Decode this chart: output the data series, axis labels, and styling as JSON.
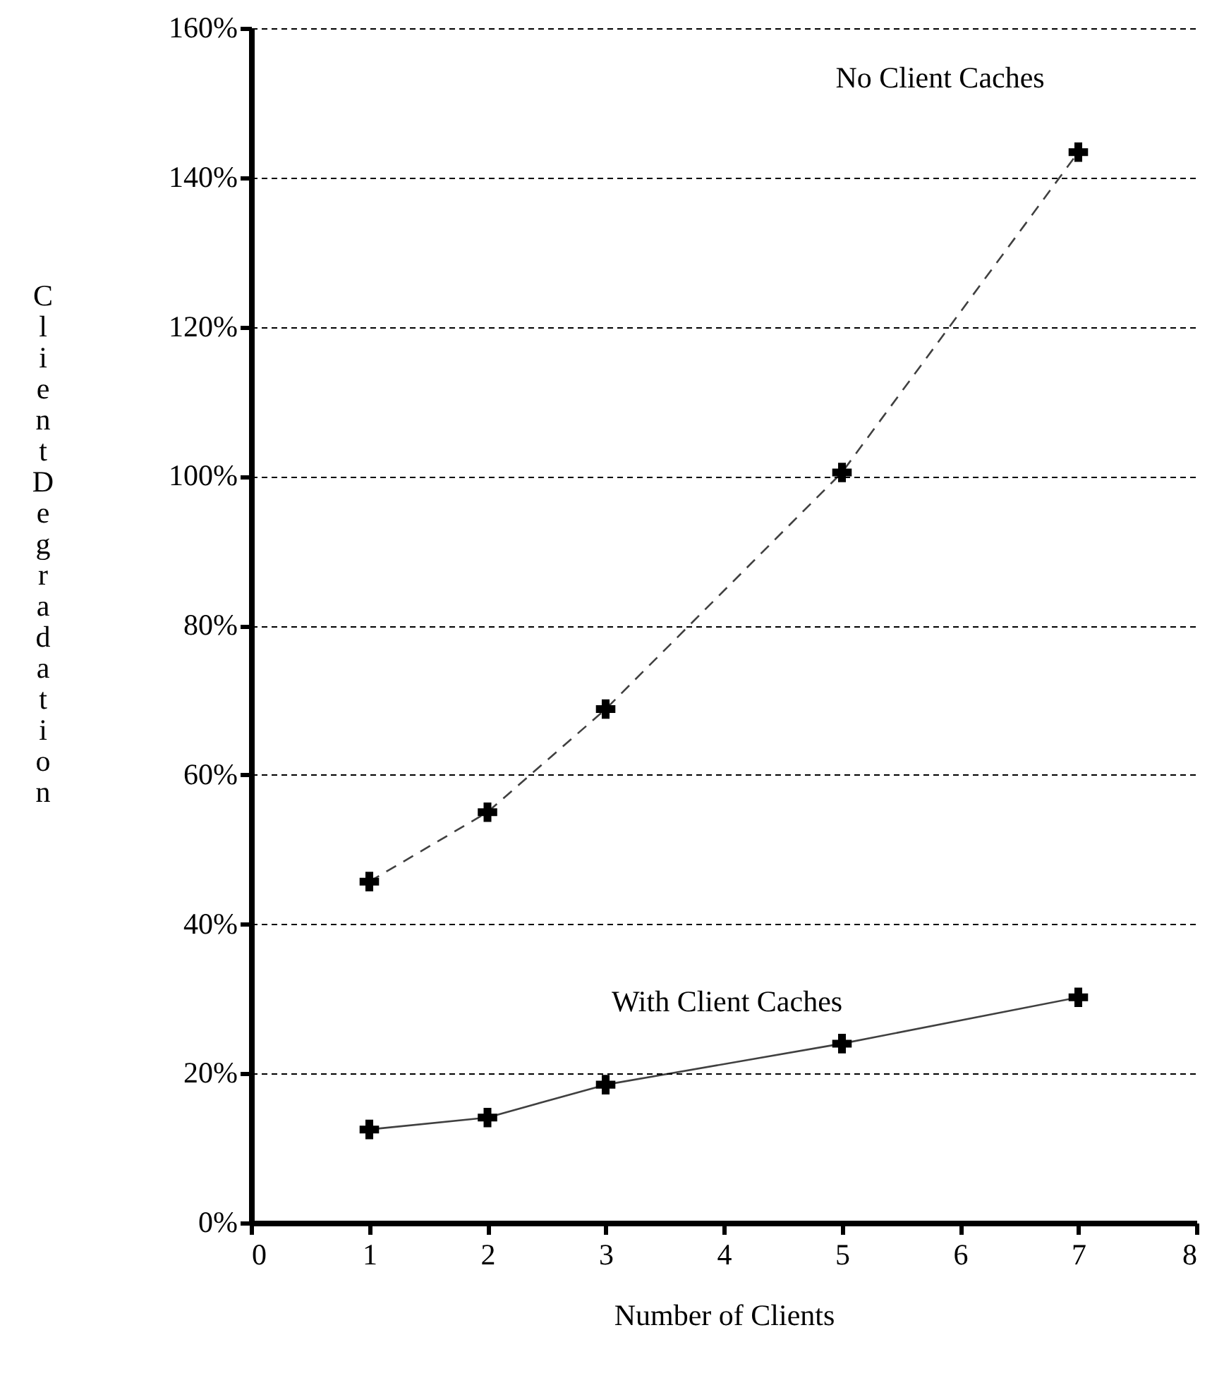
{
  "chart_data": {
    "type": "line",
    "xlabel": "Number of Clients",
    "ylabel": "Client Degradation",
    "x": [
      1,
      2,
      3,
      5,
      7
    ],
    "series": [
      {
        "name": "No Client Caches",
        "color": "#000000",
        "line_style": "dashed",
        "values": [
          45.7,
          55,
          68.8,
          100.5,
          143.4
        ]
      },
      {
        "name": "With Client Caches",
        "color": "#000000",
        "line_style": "solid",
        "values": [
          12.5,
          14.1,
          18.5,
          24,
          30.2
        ]
      }
    ],
    "xlim": [
      0,
      8
    ],
    "xticks": [
      0,
      1,
      2,
      3,
      4,
      5,
      6,
      7,
      8
    ],
    "ylim": [
      0,
      160
    ],
    "yticks": [
      {
        "value": 0,
        "label": "0%"
      },
      {
        "value": 20,
        "label": "20%"
      },
      {
        "value": 40,
        "label": "40%"
      },
      {
        "value": 60,
        "label": "60%"
      },
      {
        "value": 80,
        "label": "80%"
      },
      {
        "value": 100,
        "label": "100%"
      },
      {
        "value": 120,
        "label": "120%"
      },
      {
        "value": 140,
        "label": "140%"
      },
      {
        "value": 160,
        "label": "160%"
      }
    ],
    "grid": "y",
    "marker": "cross"
  }
}
